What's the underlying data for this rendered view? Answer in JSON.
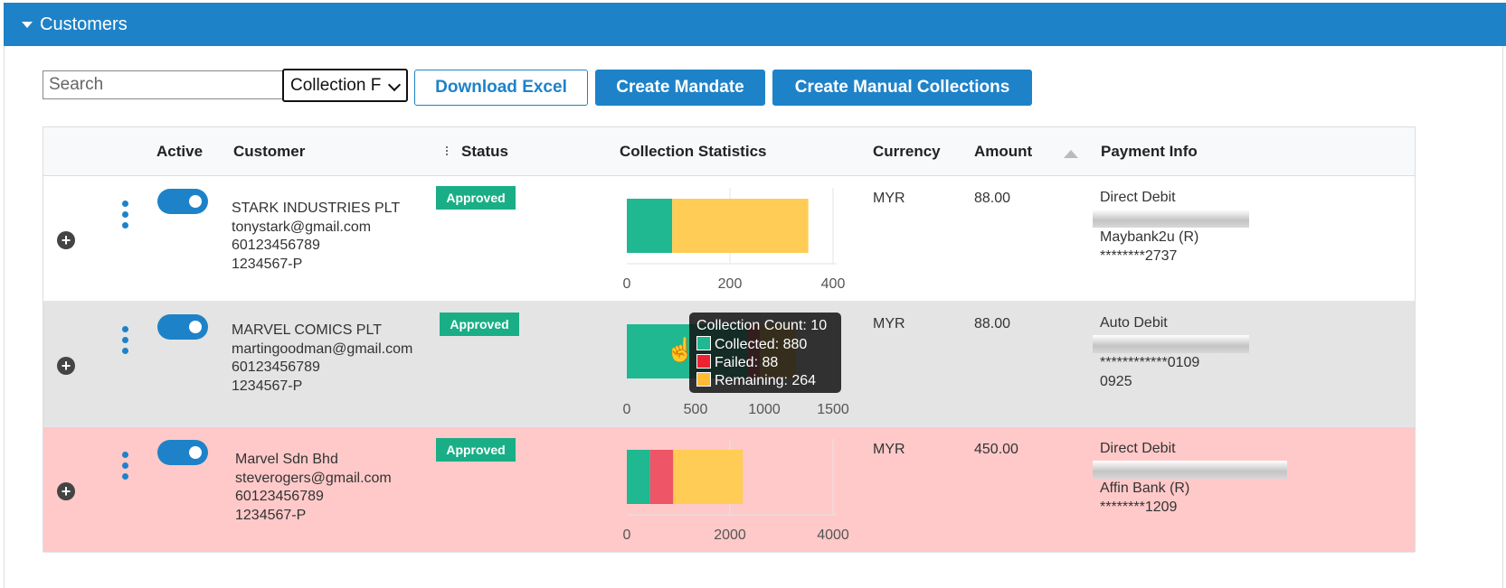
{
  "panel": {
    "title": "Customers"
  },
  "toolbar": {
    "search_placeholder": "Search",
    "select_value": "Collection F",
    "download_label": "Download Excel",
    "create_mandate_label": "Create Mandate",
    "create_manual_label": "Create Manual Collections"
  },
  "columns": {
    "active": "Active",
    "customer": "Customer",
    "status": "Status",
    "stats": "Collection Statistics",
    "currency": "Currency",
    "amount": "Amount",
    "payment": "Payment Info"
  },
  "rows": [
    {
      "name": "STARK INDUSTRIES PLT",
      "email": "tonystark@gmail.com",
      "phone": "60123456789",
      "reg": "1234567-P",
      "status": "Approved",
      "currency": "MYR",
      "amount": "88.00",
      "pay_line1": "Direct Debit",
      "pay_line2": "Maybank2u (R)",
      "pay_line3": "********2737",
      "active": true
    },
    {
      "name": "MARVEL COMICS PLT",
      "email": "martingoodman@gmail.com",
      "phone": "60123456789",
      "reg": "1234567-P",
      "status": "Approved",
      "currency": "MYR",
      "amount": "88.00",
      "pay_line1": "Auto Debit",
      "pay_line2": "************0109",
      "pay_line3": "0925",
      "active": true
    },
    {
      "name": "Marvel Sdn Bhd",
      "email": "steverogers@gmail.com",
      "phone": "60123456789",
      "reg": "1234567-P",
      "status": "Approved",
      "currency": "MYR",
      "amount": "450.00",
      "pay_line1": "Direct Debit",
      "pay_line2": "Affin Bank (R)",
      "pay_line3": "********1209",
      "active": true
    }
  ],
  "tooltip": {
    "title": "Collection Count: 10",
    "collected": "Collected: 880",
    "failed": "Failed: 88",
    "remaining": "Remaining: 264"
  },
  "colors": {
    "primary": "#1e82c8",
    "collected": "#1fb890",
    "failed": "#ee5566",
    "remaining": "#ffcc55",
    "approved": "#1aae86"
  },
  "chart_data": [
    {
      "type": "bar",
      "orientation": "horizontal-stacked",
      "series": [
        {
          "name": "Collected",
          "values": [
            88
          ]
        },
        {
          "name": "Failed",
          "values": [
            0
          ]
        },
        {
          "name": "Remaining",
          "values": [
            264
          ]
        }
      ],
      "xlim": [
        0,
        400
      ],
      "ticks": [
        "0",
        "200",
        "400"
      ]
    },
    {
      "type": "bar",
      "orientation": "horizontal-stacked",
      "series": [
        {
          "name": "Collected",
          "values": [
            880
          ]
        },
        {
          "name": "Failed",
          "values": [
            88
          ]
        },
        {
          "name": "Remaining",
          "values": [
            264
          ]
        }
      ],
      "xlim": [
        0,
        1500
      ],
      "ticks": [
        "0",
        "500",
        "1000",
        "1500"
      ]
    },
    {
      "type": "bar",
      "orientation": "horizontal-stacked",
      "series": [
        {
          "name": "Collected",
          "values": [
            450
          ]
        },
        {
          "name": "Failed",
          "values": [
            450
          ]
        },
        {
          "name": "Remaining",
          "values": [
            1350
          ]
        }
      ],
      "xlim": [
        0,
        4000
      ],
      "ticks": [
        "0",
        "2000",
        "4000"
      ]
    }
  ]
}
